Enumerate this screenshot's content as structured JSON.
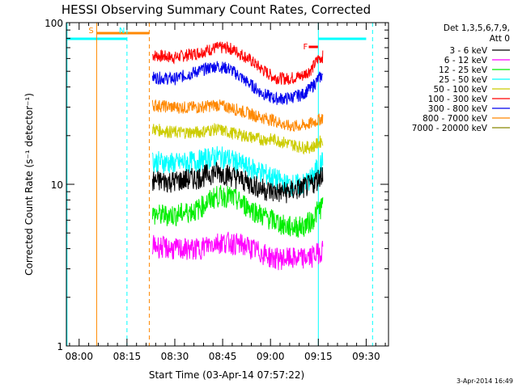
{
  "chart_data": {
    "type": "line",
    "title": "HESSI Observing Summary Count Rates, Corrected",
    "xlabel": "Start Time (03-Apr-14 07:57:22)",
    "ylabel": "Corrected Count Rate (s⁻¹ detector⁻¹)",
    "ylim": [
      1,
      100
    ],
    "yscale": "log",
    "xlim_minutes_after_0800": [
      -4,
      97
    ],
    "x_ticks": [
      {
        "label": "08:00",
        "min": 0
      },
      {
        "label": "08:15",
        "min": 15
      },
      {
        "label": "08:30",
        "min": 30
      },
      {
        "label": "08:45",
        "min": 45
      },
      {
        "label": "09:00",
        "min": 60
      },
      {
        "label": "09:15",
        "min": 75
      },
      {
        "label": "09:30",
        "min": 90
      }
    ],
    "y_ticks": [
      {
        "label": "1",
        "value": 1
      },
      {
        "label": "10",
        "value": 10
      },
      {
        "label": "100",
        "value": 100
      }
    ],
    "legend": {
      "position": "right",
      "header1": "Det 1,3,5,6,7,9,",
      "header2": "Att 0",
      "entries": [
        {
          "label": "3 - 6 keV",
          "color": "#000000"
        },
        {
          "label": "6 - 12 keV",
          "color": "#ff00ff"
        },
        {
          "label": "12 - 25 keV",
          "color": "#00ee00"
        },
        {
          "label": "25 - 50 keV",
          "color": "#00ffff"
        },
        {
          "label": "50 - 100 keV",
          "color": "#cccc00"
        },
        {
          "label": "100 - 300 keV",
          "color": "#ff0000"
        },
        {
          "label": "300 - 800 keV",
          "color": "#0000ee"
        },
        {
          "label": "800 - 7000 keV",
          "color": "#ff8800"
        },
        {
          "label": "7000 - 20000 keV",
          "color": "#888800"
        }
      ]
    },
    "series": [
      {
        "color": "#ff0000",
        "x": [
          23,
          30,
          37,
          43,
          47,
          52,
          57,
          61,
          65,
          70,
          73,
          75,
          76.5
        ],
        "y": [
          63,
          61,
          65,
          70,
          70,
          62,
          52,
          46,
          45,
          47,
          52,
          60,
          62
        ]
      },
      {
        "color": "#0000ee",
        "x": [
          23,
          30,
          37,
          43,
          47,
          52,
          57,
          61,
          65,
          70,
          73,
          75,
          76.5
        ],
        "y": [
          46,
          45,
          50,
          54,
          52,
          44,
          37,
          34,
          34,
          36,
          40,
          45,
          48
        ]
      },
      {
        "color": "#ff8800",
        "x": [
          23,
          30,
          37,
          43,
          47,
          52,
          57,
          61,
          65,
          70,
          73,
          75,
          76.5
        ],
        "y": [
          31,
          30,
          30,
          31,
          30,
          28,
          26,
          25,
          23,
          23,
          24,
          25,
          26
        ]
      },
      {
        "color": "#cccc00",
        "x": [
          23,
          30,
          37,
          43,
          47,
          52,
          57,
          61,
          65,
          70,
          73,
          75,
          76.5
        ],
        "y": [
          22,
          21,
          21,
          22,
          21,
          20,
          19,
          19,
          18,
          17,
          17,
          18,
          19
        ]
      },
      {
        "color": "#00ffff",
        "x": [
          23,
          30,
          37,
          43,
          47,
          52,
          57,
          61,
          65,
          70,
          73,
          75,
          76.5
        ],
        "y": [
          14,
          13.5,
          14,
          15,
          14.5,
          13,
          12,
          11,
          10,
          10,
          11,
          13,
          14
        ]
      },
      {
        "color": "#000000",
        "x": [
          23,
          30,
          37,
          43,
          47,
          52,
          57,
          61,
          65,
          70,
          73,
          75,
          76.5
        ],
        "y": [
          10.5,
          10.5,
          11,
          12,
          11.5,
          10.5,
          9.5,
          9,
          9,
          9.5,
          10,
          11,
          12
        ]
      },
      {
        "color": "#00ee00",
        "x": [
          23,
          30,
          37,
          43,
          47,
          52,
          57,
          61,
          65,
          70,
          73,
          75,
          76.5
        ],
        "y": [
          6.5,
          6.5,
          7,
          8.5,
          8.5,
          7.5,
          6.5,
          6,
          5.5,
          5.5,
          6,
          7,
          7.5
        ]
      },
      {
        "color": "#ff00ff",
        "x": [
          23,
          30,
          37,
          43,
          47,
          52,
          57,
          61,
          65,
          70,
          73,
          75,
          76.5
        ],
        "y": [
          4.2,
          4.0,
          4.0,
          4.4,
          4.4,
          4.2,
          3.8,
          3.5,
          3.5,
          3.5,
          3.6,
          3.8,
          4.0
        ]
      }
    ],
    "markers": [
      {
        "label": "S",
        "color": "#ff8800",
        "min": 5.5
      },
      {
        "label": "N",
        "color": "#00ffff",
        "min": 15
      },
      {
        "label": "F",
        "color": "#ff0000",
        "min": 71
      }
    ],
    "timestamp": "3-Apr-2014 16:49"
  }
}
